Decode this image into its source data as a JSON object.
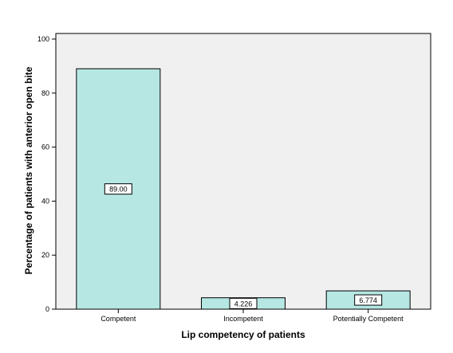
{
  "chart_data": {
    "type": "bar",
    "categories": [
      "Competent",
      "Incompetent",
      "Potentially Competent"
    ],
    "values": [
      89.0,
      4.226,
      6.774
    ],
    "data_labels": [
      "89.00",
      "4.226",
      "6.774"
    ],
    "xlabel": "Lip competency of patients",
    "ylabel": "Percentage of patients with anterior open bite",
    "ylim": [
      0,
      100
    ],
    "yticks": [
      0,
      20,
      40,
      60,
      80,
      100
    ],
    "grid": false,
    "legend": "none",
    "colors": {
      "bar_fill": "#b6e7e3",
      "bar_stroke": "#000000",
      "plot_background": "#f0f0f0",
      "label_box_fill": "#ffffff"
    }
  }
}
